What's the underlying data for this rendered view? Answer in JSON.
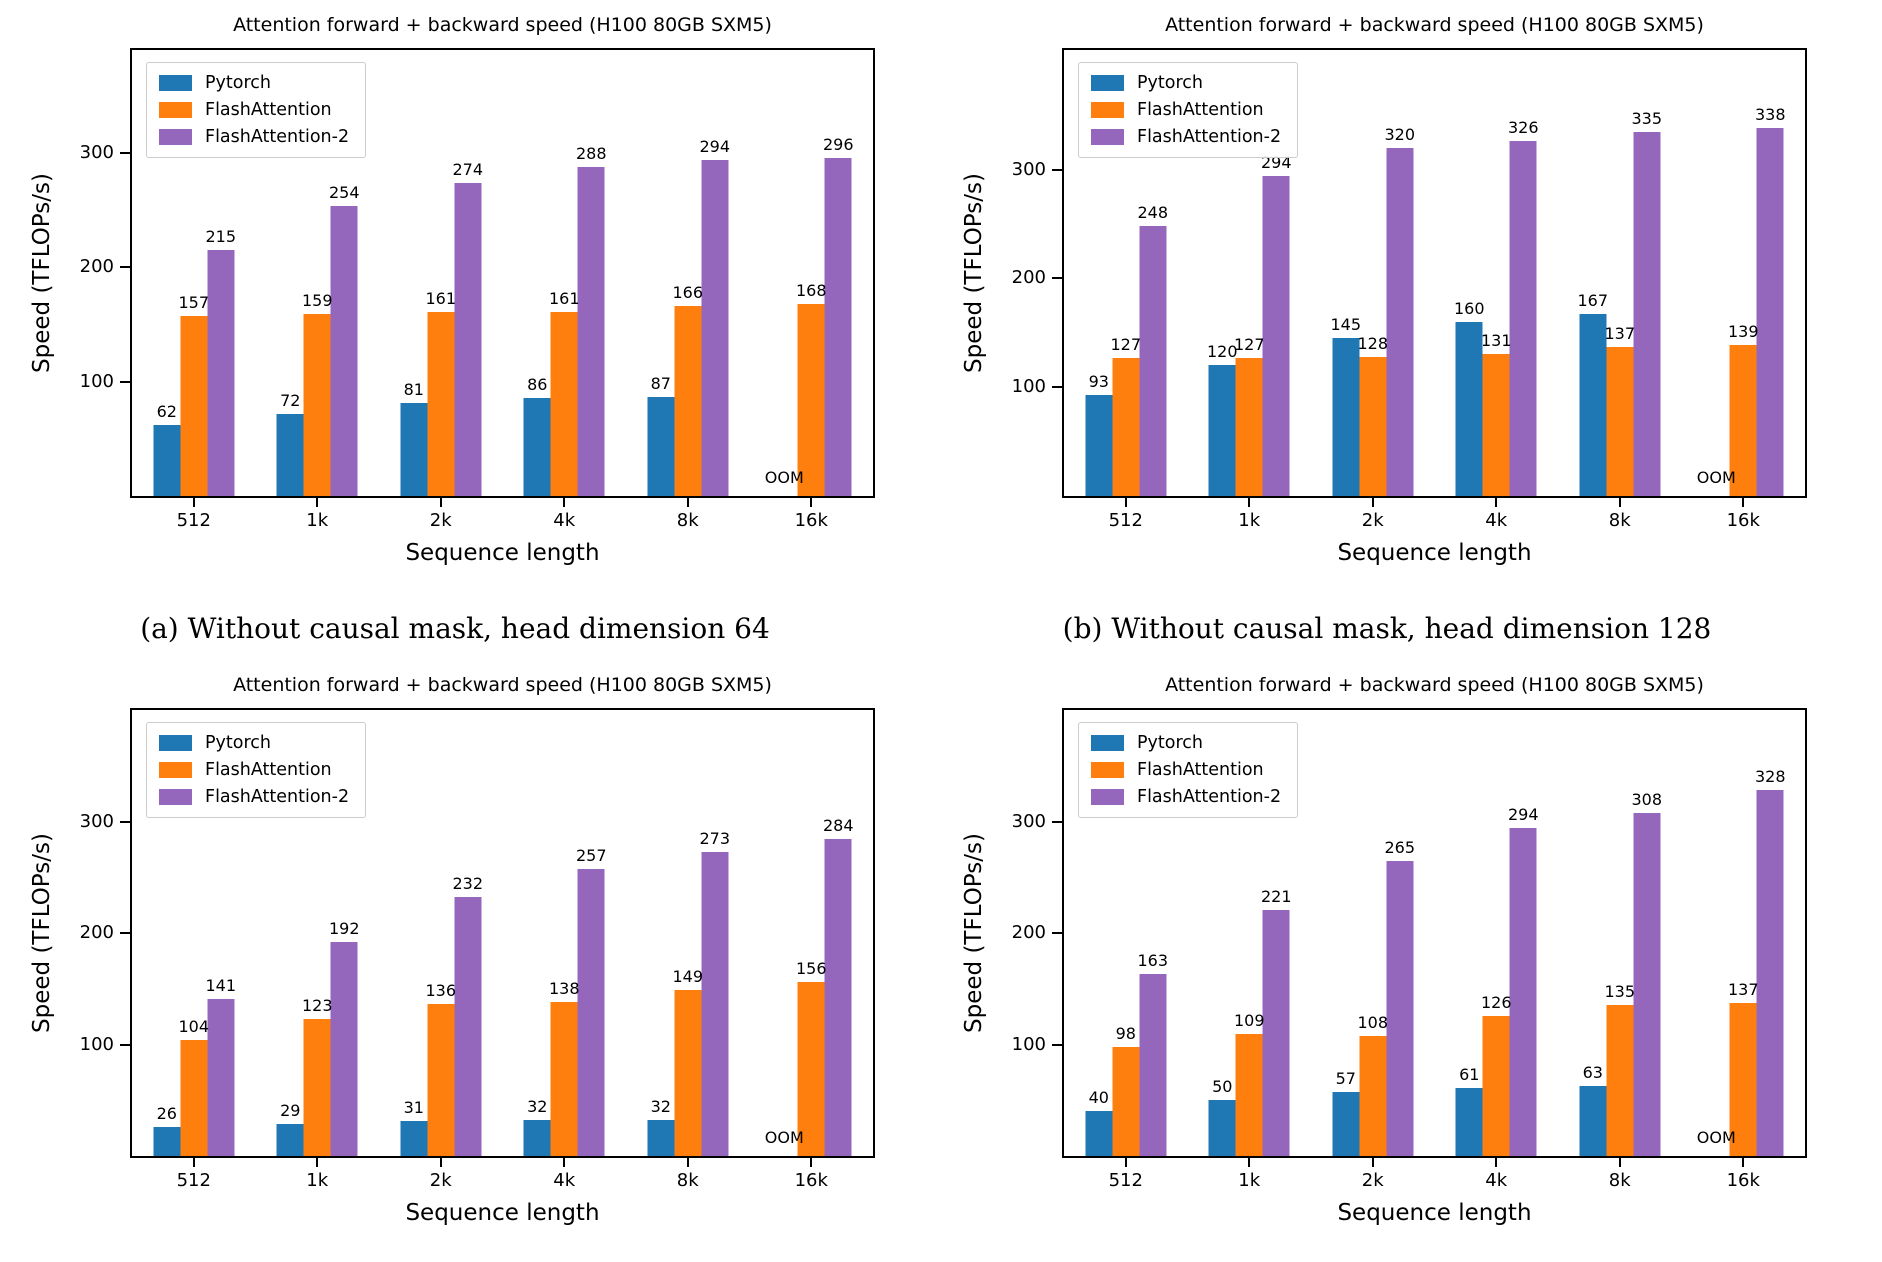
{
  "figure_background": "#ffffff",
  "captions": {
    "a": "(a) Without causal mask, head dimension 64",
    "b": "(b) Without causal mask, head dimension 128"
  },
  "legend": {
    "entries": [
      "Pytorch",
      "FlashAttention",
      "FlashAttention-2"
    ],
    "position": "upper left"
  },
  "colors": {
    "pytorch": "#1f77b4",
    "flashattention": "#ff7f0e",
    "flashattention2": "#9467bd"
  },
  "chart_data": [
    {
      "id": "a",
      "type": "bar",
      "title": "Attention forward + backward speed (H100 80GB SXM5)",
      "xlabel": "Sequence length",
      "ylabel": "Speed (TFLOPs/s)",
      "categories": [
        "512",
        "1k",
        "2k",
        "4k",
        "8k",
        "16k"
      ],
      "yticks": [
        100,
        200,
        300
      ],
      "ylim": [
        0,
        390
      ],
      "grid": false,
      "legend_position": "upper left",
      "oom_label": "OOM",
      "series": [
        {
          "name": "Pytorch",
          "color": "#1f77b4",
          "values": [
            62,
            72,
            81,
            86,
            87,
            null
          ]
        },
        {
          "name": "FlashAttention",
          "color": "#ff7f0e",
          "values": [
            157,
            159,
            161,
            161,
            166,
            168
          ]
        },
        {
          "name": "FlashAttention-2",
          "color": "#9467bd",
          "values": [
            215,
            254,
            274,
            288,
            294,
            296
          ]
        }
      ]
    },
    {
      "id": "b",
      "type": "bar",
      "title": "Attention forward + backward speed (H100 80GB SXM5)",
      "xlabel": "Sequence length",
      "ylabel": "Speed (TFLOPs/s)",
      "categories": [
        "512",
        "1k",
        "2k",
        "4k",
        "8k",
        "16k"
      ],
      "yticks": [
        100,
        200,
        300
      ],
      "ylim": [
        0,
        410
      ],
      "grid": false,
      "legend_position": "upper left",
      "oom_label": "OOM",
      "series": [
        {
          "name": "Pytorch",
          "color": "#1f77b4",
          "values": [
            93,
            120,
            145,
            160,
            167,
            null
          ]
        },
        {
          "name": "FlashAttention",
          "color": "#ff7f0e",
          "values": [
            127,
            127,
            128,
            131,
            137,
            139
          ]
        },
        {
          "name": "FlashAttention-2",
          "color": "#9467bd",
          "values": [
            248,
            294,
            320,
            326,
            335,
            338
          ]
        }
      ]
    },
    {
      "id": "c",
      "type": "bar",
      "title": "Attention forward + backward speed (H100 80GB SXM5)",
      "xlabel": "Sequence length",
      "ylabel": "Speed (TFLOPs/s)",
      "categories": [
        "512",
        "1k",
        "2k",
        "4k",
        "8k",
        "16k"
      ],
      "yticks": [
        100,
        200,
        300
      ],
      "ylim": [
        0,
        400
      ],
      "grid": false,
      "legend_position": "upper left",
      "oom_label": "OOM",
      "series": [
        {
          "name": "Pytorch",
          "color": "#1f77b4",
          "values": [
            26,
            29,
            31,
            32,
            32,
            null
          ]
        },
        {
          "name": "FlashAttention",
          "color": "#ff7f0e",
          "values": [
            104,
            123,
            136,
            138,
            149,
            156
          ]
        },
        {
          "name": "FlashAttention-2",
          "color": "#9467bd",
          "values": [
            141,
            192,
            232,
            257,
            273,
            284
          ]
        }
      ]
    },
    {
      "id": "d",
      "type": "bar",
      "title": "Attention forward + backward speed (H100 80GB SXM5)",
      "xlabel": "Sequence length",
      "ylabel": "Speed (TFLOPs/s)",
      "categories": [
        "512",
        "1k",
        "2k",
        "4k",
        "8k",
        "16k"
      ],
      "yticks": [
        100,
        200,
        300
      ],
      "ylim": [
        0,
        400
      ],
      "grid": false,
      "legend_position": "upper left",
      "oom_label": "OOM",
      "series": [
        {
          "name": "Pytorch",
          "color": "#1f77b4",
          "values": [
            40,
            50,
            57,
            61,
            63,
            null
          ]
        },
        {
          "name": "FlashAttention",
          "color": "#ff7f0e",
          "values": [
            98,
            109,
            108,
            126,
            135,
            137
          ]
        },
        {
          "name": "FlashAttention-2",
          "color": "#9467bd",
          "values": [
            163,
            221,
            265,
            294,
            308,
            328
          ]
        }
      ]
    }
  ]
}
